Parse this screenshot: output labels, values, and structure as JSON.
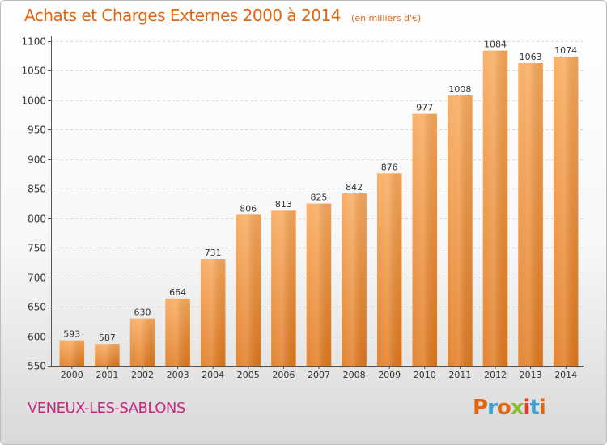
{
  "header": {
    "title": "Achats et Charges Externes 2000 à 2014",
    "unit_note": "(en milliers d'€)"
  },
  "footer": {
    "commune": "VENEUX-LES-SABLONS",
    "logo_text": "Proxiti",
    "logo_colors": [
      "#e3660f",
      "#3aa0d8",
      "#e3660f",
      "#8bbf2a",
      "#e33a2a",
      "#3aa0d8",
      "#e3660f"
    ]
  },
  "colors": {
    "accent": "#e3660f",
    "commune": "#c8277f",
    "bar_light": "#f8a85a",
    "bar_dark": "#e0781d"
  },
  "chart_data": {
    "type": "bar",
    "title": "Achats et Charges Externes 2000 à 2014",
    "subtitle": "(en milliers d'€)",
    "categories": [
      "2000",
      "2001",
      "2002",
      "2003",
      "2004",
      "2005",
      "2006",
      "2007",
      "2008",
      "2009",
      "2010",
      "2011",
      "2012",
      "2013",
      "2014"
    ],
    "values": [
      593,
      587,
      630,
      664,
      731,
      806,
      813,
      825,
      842,
      876,
      977,
      1008,
      1084,
      1063,
      1074
    ],
    "ylim": [
      550,
      1100
    ],
    "yticks": [
      550,
      600,
      650,
      700,
      750,
      800,
      850,
      900,
      950,
      1000,
      1050,
      1100
    ],
    "grid": true,
    "data_labels": true,
    "legend": "none"
  }
}
